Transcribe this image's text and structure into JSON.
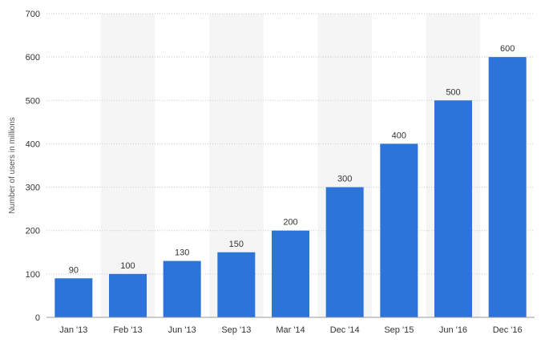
{
  "chart_data": {
    "type": "bar",
    "title": "",
    "xlabel": "",
    "ylabel": "Number of users in millions",
    "categories": [
      "Jan '13",
      "Feb '13",
      "Jun '13",
      "Sep '13",
      "Mar '14",
      "Dec '14",
      "Sep '15",
      "Jun '16",
      "Dec '16"
    ],
    "values": [
      90,
      100,
      130,
      150,
      200,
      300,
      400,
      500,
      600
    ],
    "ylim": [
      0,
      700
    ],
    "yticks": [
      0,
      100,
      200,
      300,
      400,
      500,
      600,
      700
    ],
    "grid": true,
    "legend": "none",
    "colors": {
      "bar": "#2c74d9",
      "band": "#f5f5f5"
    }
  }
}
